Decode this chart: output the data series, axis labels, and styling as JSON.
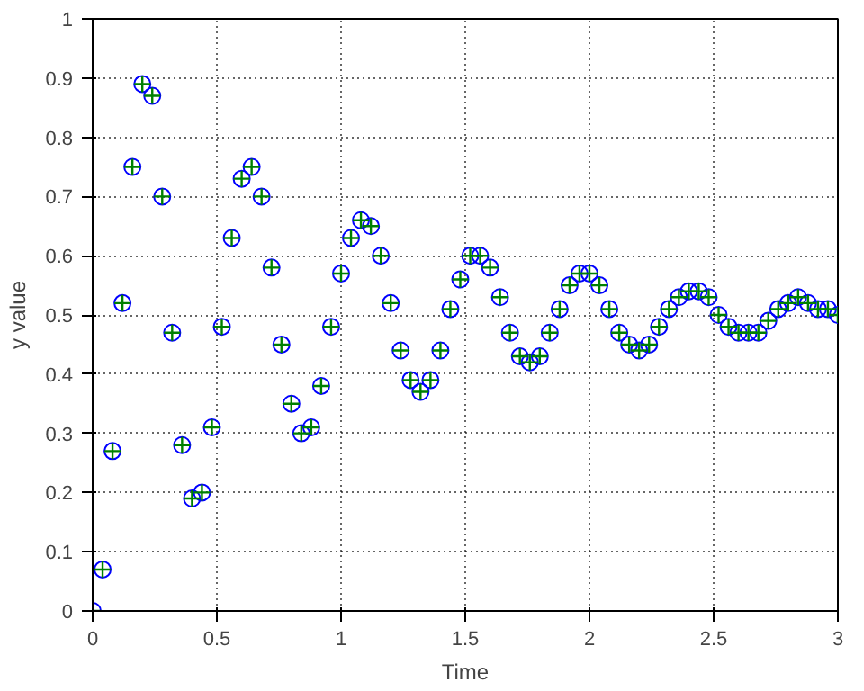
{
  "chart_data": {
    "type": "scatter",
    "xlabel": "Time",
    "ylabel": "y value",
    "x": [
      0,
      0.04,
      0.08,
      0.12,
      0.16,
      0.2,
      0.24,
      0.28,
      0.32,
      0.36,
      0.4,
      0.44,
      0.48,
      0.52,
      0.56,
      0.6,
      0.64,
      0.68,
      0.72,
      0.76,
      0.8,
      0.84,
      0.88,
      0.92,
      0.96,
      1.0,
      1.04,
      1.08,
      1.12,
      1.16,
      1.2,
      1.24,
      1.28,
      1.32,
      1.36,
      1.4,
      1.44,
      1.48,
      1.52,
      1.56,
      1.6,
      1.64,
      1.68,
      1.72,
      1.76,
      1.8,
      1.84,
      1.88,
      1.92,
      1.96,
      2.0,
      2.04,
      2.08,
      2.12,
      2.16,
      2.2,
      2.24,
      2.28,
      2.32,
      2.36,
      2.4,
      2.44,
      2.48,
      2.52,
      2.56,
      2.6,
      2.64,
      2.68,
      2.72,
      2.76,
      2.8,
      2.84,
      2.88,
      2.92,
      2.96,
      3.0
    ],
    "series": [
      {
        "color": "#0000ff",
        "marker": "circle",
        "values": [
          0,
          0.07,
          0.27,
          0.52,
          0.75,
          0.89,
          0.87,
          0.7,
          0.47,
          0.28,
          0.19,
          0.2,
          0.31,
          0.48,
          0.63,
          0.73,
          0.75,
          0.7,
          0.58,
          0.45,
          0.35,
          0.3,
          0.31,
          0.38,
          0.48,
          0.57,
          0.63,
          0.66,
          0.65,
          0.6,
          0.52,
          0.44,
          0.39,
          0.37,
          0.39,
          0.44,
          0.51,
          0.56,
          0.6,
          0.6,
          0.58,
          0.53,
          0.47,
          0.43,
          0.42,
          0.43,
          0.47,
          0.51,
          0.55,
          0.57,
          0.57,
          0.55,
          0.51,
          0.47,
          0.45,
          0.44,
          0.45,
          0.48,
          0.51,
          0.53,
          0.54,
          0.54,
          0.53,
          0.5,
          0.48,
          0.47,
          0.47,
          0.47,
          0.49,
          0.51,
          0.52,
          0.53,
          0.52,
          0.51,
          0.51,
          0.5
        ]
      },
      {
        "color": "#008000",
        "marker": "cross",
        "values": [
          0,
          0.07,
          0.27,
          0.52,
          0.75,
          0.89,
          0.87,
          0.7,
          0.47,
          0.28,
          0.19,
          0.2,
          0.31,
          0.48,
          0.63,
          0.73,
          0.75,
          0.7,
          0.58,
          0.45,
          0.35,
          0.3,
          0.31,
          0.38,
          0.48,
          0.57,
          0.63,
          0.66,
          0.65,
          0.6,
          0.52,
          0.44,
          0.39,
          0.37,
          0.39,
          0.44,
          0.51,
          0.56,
          0.6,
          0.6,
          0.58,
          0.53,
          0.47,
          0.43,
          0.42,
          0.43,
          0.47,
          0.51,
          0.55,
          0.57,
          0.57,
          0.55,
          0.51,
          0.47,
          0.45,
          0.44,
          0.45,
          0.48,
          0.51,
          0.53,
          0.54,
          0.54,
          0.53,
          0.5,
          0.48,
          0.47,
          0.47,
          0.47,
          0.49,
          0.51,
          0.52,
          0.53,
          0.52,
          0.51,
          0.51,
          0.5
        ]
      }
    ],
    "xlim": [
      0,
      3
    ],
    "ylim": [
      0,
      1
    ],
    "xticks": [
      0,
      0.5,
      1,
      1.5,
      2,
      2.5,
      3
    ],
    "yticks": [
      0,
      0.1,
      0.2,
      0.3,
      0.4,
      0.5,
      0.6,
      0.7,
      0.8,
      0.9,
      1
    ],
    "grid": true
  }
}
